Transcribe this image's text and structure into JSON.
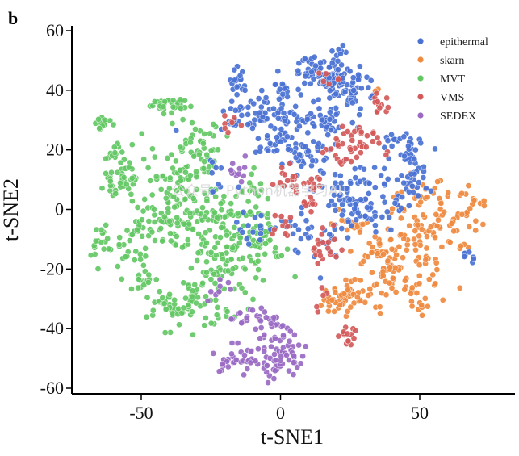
{
  "panel_label": "b",
  "watermark": "公众号：Python机器学习AI",
  "colors": {
    "epithermal": "#4a72d4",
    "skarn": "#ef8a3f",
    "MVT": "#63c864",
    "VMS": "#d45a5a",
    "SEDEX": "#9a6ac4"
  },
  "chart_data": {
    "type": "scatter",
    "title": "",
    "xlabel": "t-SNE1",
    "ylabel": "t-SNE2",
    "xlim": [
      -75,
      82
    ],
    "ylim": [
      -62,
      62
    ],
    "xticks": [
      -50,
      0,
      50
    ],
    "yticks": [
      -60,
      -40,
      -20,
      0,
      20,
      40,
      60
    ],
    "legend_position": "top-right",
    "series": [
      {
        "name": "epithermal",
        "clusters": [
          {
            "cx": 16,
            "cy": 45,
            "sx": 5,
            "sy": 3,
            "n": 80
          },
          {
            "cx": 26,
            "cy": 40,
            "sx": 3,
            "sy": 3,
            "n": 40
          },
          {
            "cx": 2,
            "cy": 32,
            "sx": 12,
            "sy": 5,
            "n": 60
          },
          {
            "cx": 18,
            "cy": 30,
            "sx": 6,
            "sy": 3,
            "n": 35
          },
          {
            "cx": -8,
            "cy": 33,
            "sx": 4,
            "sy": 3,
            "n": 25
          },
          {
            "cx": 0,
            "cy": 42,
            "sx": 2,
            "sy": 2,
            "n": 12
          },
          {
            "cx": -15,
            "cy": 43,
            "sx": 2,
            "sy": 3,
            "n": 18
          },
          {
            "cx": 10,
            "cy": 18,
            "sx": 6,
            "sy": 4,
            "n": 40
          },
          {
            "cx": -2,
            "cy": 22,
            "sx": 4,
            "sy": 3,
            "n": 20
          },
          {
            "cx": 30,
            "cy": 6,
            "sx": 7,
            "sy": 4,
            "n": 30
          },
          {
            "cx": 32,
            "cy": -1,
            "sx": 6,
            "sy": 3,
            "n": 40
          },
          {
            "cx": 45,
            "cy": 12,
            "sx": 5,
            "sy": 4,
            "n": 30
          },
          {
            "cx": 48,
            "cy": 20,
            "sx": 3,
            "sy": 3,
            "n": 15
          },
          {
            "cx": 42,
            "cy": 24,
            "sx": 3,
            "sy": 2,
            "n": 10
          },
          {
            "cx": 15,
            "cy": -10,
            "sx": 5,
            "sy": 5,
            "n": 25
          },
          {
            "cx": 5,
            "cy": -5,
            "sx": 3,
            "sy": 2,
            "n": 12
          },
          {
            "cx": -10,
            "cy": -5,
            "sx": 4,
            "sy": 3,
            "n": 15
          },
          {
            "cx": -17,
            "cy": 28,
            "sx": 3,
            "sy": 3,
            "n": 12
          },
          {
            "cx": -22,
            "cy": 10,
            "sx": 3,
            "sy": 3,
            "n": 10
          },
          {
            "cx": 21,
            "cy": 52,
            "sx": 2,
            "sy": 2,
            "n": 8
          },
          {
            "cx": 67,
            "cy": -16,
            "sx": 1.5,
            "sy": 1.5,
            "n": 8
          },
          {
            "cx": 50,
            "cy": 9,
            "sx": 2,
            "sy": 2,
            "n": 8
          },
          {
            "cx": 25,
            "cy": 8,
            "sx": 4,
            "sy": 3,
            "n": 20
          }
        ]
      },
      {
        "name": "skarn",
        "clusters": [
          {
            "cx": 50,
            "cy": -10,
            "sx": 8,
            "sy": 9,
            "n": 90
          },
          {
            "cx": 35,
            "cy": -15,
            "sx": 5,
            "sy": 5,
            "n": 35
          },
          {
            "cx": 25,
            "cy": -28,
            "sx": 5,
            "sy": 3,
            "n": 35
          },
          {
            "cx": 20,
            "cy": -32,
            "sx": 4,
            "sy": 2,
            "n": 20
          },
          {
            "cx": 62,
            "cy": -5,
            "sx": 5,
            "sy": 5,
            "n": 25
          },
          {
            "cx": 70,
            "cy": 0,
            "sx": 3,
            "sy": 2,
            "n": 12
          },
          {
            "cx": 43,
            "cy": -25,
            "sx": 4,
            "sy": 3,
            "n": 15
          },
          {
            "cx": 50,
            "cy": -32,
            "sx": 2,
            "sy": 1.5,
            "n": 8
          },
          {
            "cx": 55,
            "cy": 5,
            "sx": 4,
            "sy": 2,
            "n": 12
          },
          {
            "cx": 26,
            "cy": -5,
            "sx": 4,
            "sy": 3,
            "n": 15
          },
          {
            "cx": 35,
            "cy": 40,
            "sx": 1,
            "sy": 1,
            "n": 2
          },
          {
            "cx": 40,
            "cy": -20,
            "sx": 3,
            "sy": 3,
            "n": 10
          }
        ]
      },
      {
        "name": "MVT",
        "clusters": [
          {
            "cx": -40,
            "cy": 35,
            "sx": 4,
            "sy": 1.5,
            "n": 35
          },
          {
            "cx": -64,
            "cy": 29,
            "sx": 1.5,
            "sy": 1.5,
            "n": 15
          },
          {
            "cx": -58,
            "cy": 18,
            "sx": 3,
            "sy": 2,
            "n": 15
          },
          {
            "cx": -55,
            "cy": 11,
            "sx": 4,
            "sy": 2,
            "n": 25
          },
          {
            "cx": -60,
            "cy": 8,
            "sx": 3,
            "sy": 2,
            "n": 15
          },
          {
            "cx": -30,
            "cy": 20,
            "sx": 5,
            "sy": 6,
            "n": 60
          },
          {
            "cx": -40,
            "cy": 10,
            "sx": 5,
            "sy": 5,
            "n": 35
          },
          {
            "cx": -38,
            "cy": -5,
            "sx": 7,
            "sy": 6,
            "n": 70
          },
          {
            "cx": -20,
            "cy": -15,
            "sx": 8,
            "sy": 8,
            "n": 110
          },
          {
            "cx": -8,
            "cy": -10,
            "sx": 4,
            "sy": 5,
            "n": 40
          },
          {
            "cx": -40,
            "cy": -33,
            "sx": 4,
            "sy": 4,
            "n": 40
          },
          {
            "cx": -30,
            "cy": -30,
            "sx": 4,
            "sy": 5,
            "n": 30
          },
          {
            "cx": -55,
            "cy": -15,
            "sx": 4,
            "sy": 4,
            "n": 25
          },
          {
            "cx": -65,
            "cy": -12,
            "sx": 1.5,
            "sy": 3,
            "n": 15
          },
          {
            "cx": -50,
            "cy": -24,
            "sx": 3,
            "sy": 3,
            "n": 12
          },
          {
            "cx": -25,
            "cy": 0,
            "sx": 4,
            "sy": 4,
            "n": 30
          },
          {
            "cx": -10,
            "cy": 5,
            "sx": 3,
            "sy": 3,
            "n": 15
          },
          {
            "cx": -50,
            "cy": -5,
            "sx": 3,
            "sy": 3,
            "n": 15
          },
          {
            "cx": -18,
            "cy": -35,
            "sx": 3,
            "sy": 2,
            "n": 10
          }
        ]
      },
      {
        "name": "VMS",
        "clusters": [
          {
            "cx": 26,
            "cy": 22,
            "sx": 5,
            "sy": 3,
            "n": 45
          },
          {
            "cx": 36,
            "cy": 35,
            "sx": 2,
            "sy": 2,
            "n": 12
          },
          {
            "cx": 6,
            "cy": 10,
            "sx": 4,
            "sy": 2,
            "n": 25
          },
          {
            "cx": 10,
            "cy": 2,
            "sx": 3,
            "sy": 2,
            "n": 10
          },
          {
            "cx": 16,
            "cy": -12,
            "sx": 3,
            "sy": 3,
            "n": 20
          },
          {
            "cx": 0,
            "cy": -5,
            "sx": 2,
            "sy": 3,
            "n": 10
          },
          {
            "cx": 24,
            "cy": -43,
            "sx": 1.5,
            "sy": 2,
            "n": 14
          },
          {
            "cx": -18,
            "cy": 30,
            "sx": 2,
            "sy": 2,
            "n": 8
          },
          {
            "cx": 17,
            "cy": 45,
            "sx": 2,
            "sy": 2,
            "n": 6
          },
          {
            "cx": 15,
            "cy": -30,
            "sx": 2,
            "sy": 2,
            "n": 5
          }
        ]
      },
      {
        "name": "SEDEX",
        "clusters": [
          {
            "cx": -15,
            "cy": -50,
            "sx": 5,
            "sy": 3,
            "n": 40
          },
          {
            "cx": 2,
            "cy": -46,
            "sx": 4,
            "sy": 4,
            "n": 40
          },
          {
            "cx": -6,
            "cy": -38,
            "sx": 4,
            "sy": 2,
            "n": 20
          },
          {
            "cx": 0,
            "cy": -53,
            "sx": 3,
            "sy": 2,
            "n": 20
          },
          {
            "cx": -15,
            "cy": -37,
            "sx": 3,
            "sy": 2,
            "n": 10
          },
          {
            "cx": -15,
            "cy": 15,
            "sx": 2,
            "sy": 3,
            "n": 12
          },
          {
            "cx": -22,
            "cy": -25,
            "sx": 3,
            "sy": 3,
            "n": 8
          }
        ]
      }
    ]
  }
}
